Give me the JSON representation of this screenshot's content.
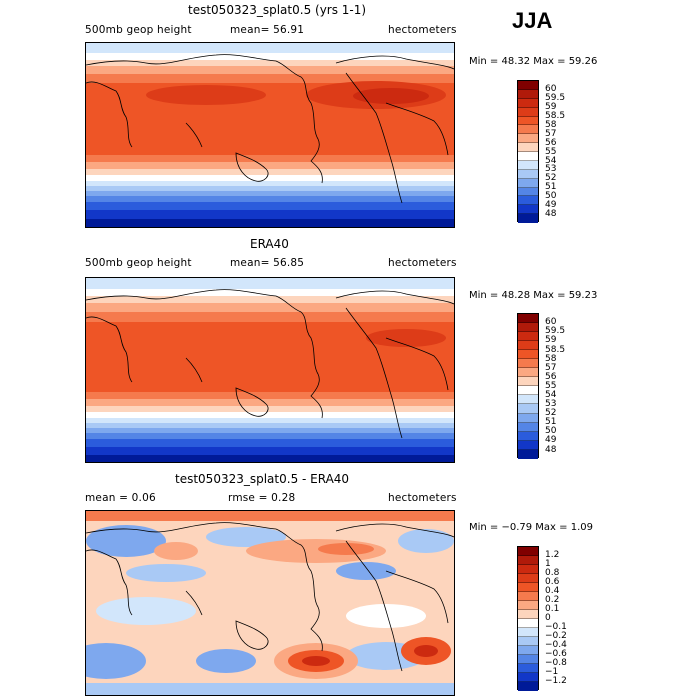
{
  "season": "JJA",
  "panels": [
    {
      "title": "test050323_splat0.5 (yrs 1-1)",
      "left_label": "500mb geop height",
      "center_label": "mean=  56.91",
      "right_label": "hectometers",
      "minmax": "Min =  48.32 Max =  59.26",
      "colorbar_labels": [
        "60",
        "59.5",
        "59",
        "58.5",
        "58",
        "57",
        "56",
        "55",
        "54",
        "53",
        "52",
        "51",
        "50",
        "49",
        "48"
      ],
      "colors": [
        "#800000",
        "#b01a0a",
        "#cc2a10",
        "#dd3c18",
        "#ee5526",
        "#f57a4d",
        "#fba882",
        "#fdd5bd",
        "#ffffff",
        "#d2e6fb",
        "#a9c9f5",
        "#7ea8ee",
        "#5485e6",
        "#2b5cdc",
        "#1237c8",
        "#001a98"
      ]
    },
    {
      "title": "ERA40",
      "left_label": "500mb geop height",
      "center_label": "mean=  56.85",
      "right_label": "hectometers",
      "minmax": "Min =  48.28 Max =  59.23",
      "colorbar_labels": [
        "60",
        "59.5",
        "59",
        "58.5",
        "58",
        "57",
        "56",
        "55",
        "54",
        "53",
        "52",
        "51",
        "50",
        "49",
        "48"
      ],
      "colors": [
        "#800000",
        "#b01a0a",
        "#cc2a10",
        "#dd3c18",
        "#ee5526",
        "#f57a4d",
        "#fba882",
        "#fdd5bd",
        "#ffffff",
        "#d2e6fb",
        "#a9c9f5",
        "#7ea8ee",
        "#5485e6",
        "#2b5cdc",
        "#1237c8",
        "#001a98"
      ]
    },
    {
      "title": "test050323_splat0.5 - ERA40",
      "left_label": "mean =    0.06",
      "center_label": "rmse =    0.28",
      "right_label": "hectometers",
      "minmax": "Min =  −0.79 Max =    1.09",
      "colorbar_labels": [
        "1.2",
        "1",
        "0.8",
        "0.6",
        "0.4",
        "0.2",
        "0.1",
        "0",
        "−0.1",
        "−0.2",
        "−0.4",
        "−0.6",
        "−0.8",
        "−1",
        "−1.2"
      ],
      "colors": [
        "#800000",
        "#b01a0a",
        "#cc2a10",
        "#dd3c18",
        "#ee5526",
        "#f57a4d",
        "#fba882",
        "#fdd5bd",
        "#ffffff",
        "#d2e6fb",
        "#a9c9f5",
        "#7ea8ee",
        "#5485e6",
        "#2b5cdc",
        "#1237c8",
        "#001a98"
      ]
    }
  ]
}
